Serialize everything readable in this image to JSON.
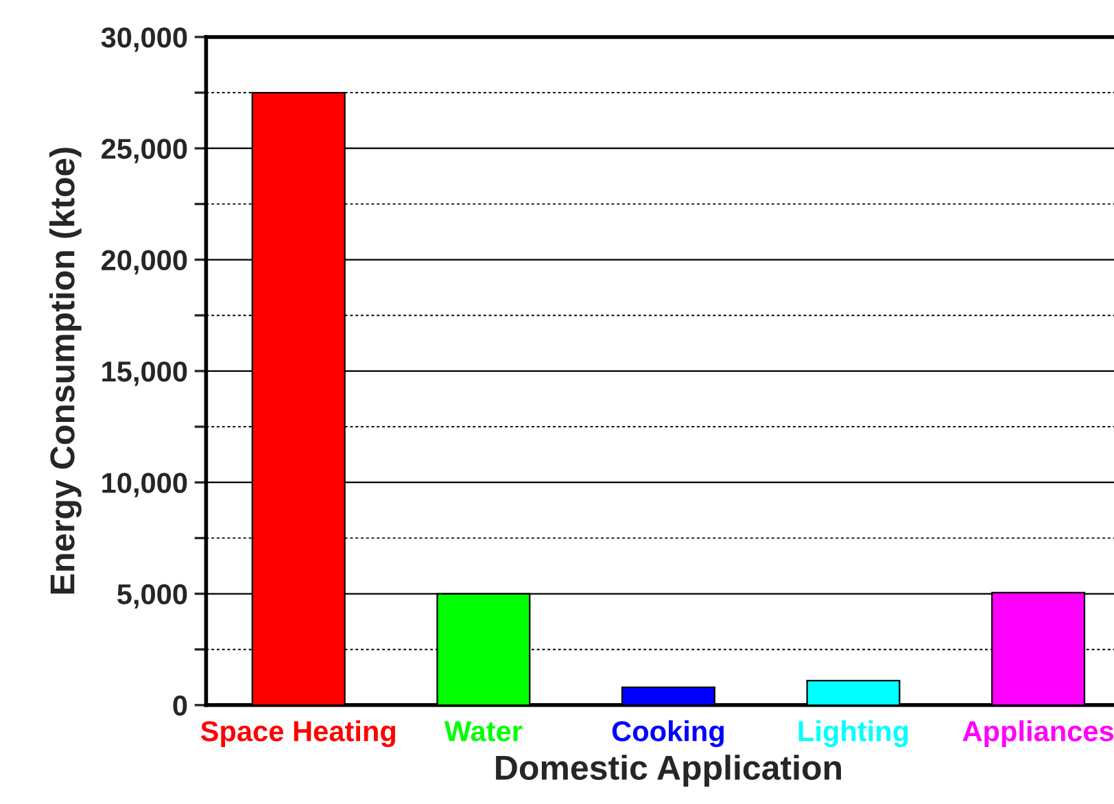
{
  "chart_data": {
    "type": "bar",
    "xlabel": "Domestic Application",
    "ylabel": "Energy Consumption (ktoe)",
    "categories": [
      "Space Heating",
      "Water",
      "Cooking",
      "Lighting",
      "Appliances"
    ],
    "values": [
      27500,
      5000,
      800,
      1100,
      5050
    ],
    "colors": [
      "#ff0000",
      "#00ff00",
      "#0000ff",
      "#00ffff",
      "#ff00ff"
    ],
    "ylim": [
      0,
      30000
    ],
    "yticks": [
      {
        "value": 0,
        "label": "0"
      },
      {
        "value": 2500,
        "label": null
      },
      {
        "value": 5000,
        "label": "5,000"
      },
      {
        "value": 7500,
        "label": null
      },
      {
        "value": 10000,
        "label": "10,000"
      },
      {
        "value": 12500,
        "label": null
      },
      {
        "value": 15000,
        "label": "15,000"
      },
      {
        "value": 17500,
        "label": null
      },
      {
        "value": 20000,
        "label": "20,000"
      },
      {
        "value": 22500,
        "label": null
      },
      {
        "value": 25000,
        "label": "25,000"
      },
      {
        "value": 27500,
        "label": null
      },
      {
        "value": 30000,
        "label": "30,000"
      }
    ],
    "grid": "y"
  }
}
